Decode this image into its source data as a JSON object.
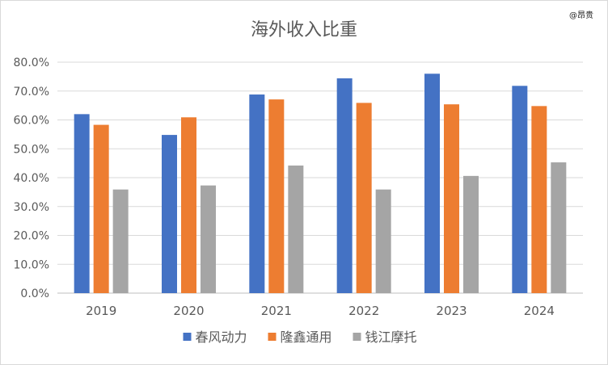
{
  "chart_data": {
    "type": "bar",
    "title": "海外收入比重",
    "watermark": "@昂贵",
    "categories": [
      "2019",
      "2020",
      "2021",
      "2022",
      "2023",
      "2024"
    ],
    "series": [
      {
        "name": "春风动力",
        "color": "#4472C4",
        "values": [
          62.0,
          54.8,
          68.8,
          74.4,
          76.0,
          71.8
        ]
      },
      {
        "name": "隆鑫通用",
        "color": "#ED7D31",
        "values": [
          58.3,
          60.9,
          67.1,
          65.9,
          65.4,
          64.8
        ]
      },
      {
        "name": "钱江摩托",
        "color": "#A5A5A5",
        "values": [
          35.9,
          37.3,
          44.2,
          35.9,
          40.6,
          45.3
        ]
      }
    ],
    "ylim": [
      0,
      80
    ],
    "yticks": [
      "0.0%",
      "10.0%",
      "20.0%",
      "30.0%",
      "40.0%",
      "50.0%",
      "60.0%",
      "70.0%",
      "80.0%"
    ],
    "grid": true,
    "legend": "bottom"
  }
}
